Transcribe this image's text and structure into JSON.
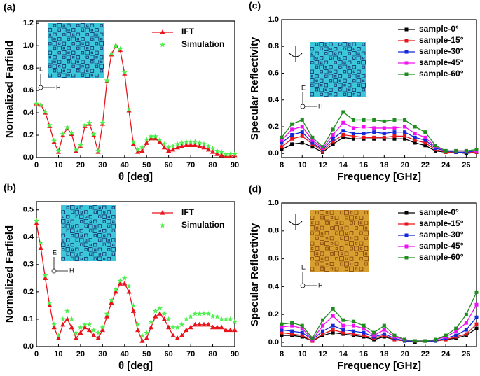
{
  "chart_data": [
    {
      "type": "line",
      "panel_label": "(a)",
      "x_label": "θ [deg]",
      "y_label": "Normalized Farfield",
      "field_labels": [
        "E",
        "H"
      ],
      "legend": "upper right",
      "x": [
        0,
        2,
        4,
        6,
        8,
        10,
        12,
        14,
        16,
        18,
        20,
        22,
        24,
        26,
        28,
        30,
        32,
        34,
        36,
        38,
        40,
        42,
        44,
        46,
        48,
        50,
        52,
        54,
        56,
        58,
        60,
        62,
        64,
        66,
        68,
        70,
        72,
        74,
        76,
        78,
        80,
        82,
        84,
        86,
        88,
        90
      ],
      "xlim": [
        0,
        90
      ],
      "xticks": [
        0,
        10,
        20,
        30,
        40,
        50,
        60,
        70,
        80,
        90
      ],
      "ylim": [
        0,
        1.22
      ],
      "yticks": [
        {
          "value": 0,
          "label": "0.0"
        },
        0.2,
        0.4,
        0.6,
        0.8,
        {
          "value": 1,
          "label": "1.0"
        },
        1.2
      ],
      "series": [
        {
          "name": "IFT",
          "color": "#e8141c",
          "marker": "triangle",
          "line": true,
          "values": [
            0.48,
            0.47,
            0.4,
            0.28,
            0.14,
            0.05,
            0.2,
            0.26,
            0.21,
            0.06,
            0.1,
            0.28,
            0.3,
            0.2,
            0.05,
            0.3,
            0.68,
            0.92,
            1.0,
            0.96,
            0.75,
            0.42,
            0.12,
            0.05,
            0.06,
            0.13,
            0.17,
            0.17,
            0.14,
            0.09,
            0.06,
            0.07,
            0.09,
            0.1,
            0.11,
            0.11,
            0.11,
            0.1,
            0.09,
            0.07,
            0.05,
            0.03,
            0.02,
            0.01,
            0.01,
            0.02
          ]
        },
        {
          "name": "Simulation",
          "color": "#4cf04c",
          "marker": "star",
          "line": false,
          "values": [
            0.48,
            0.47,
            0.41,
            0.29,
            0.15,
            0.06,
            0.21,
            0.27,
            0.22,
            0.07,
            0.11,
            0.29,
            0.31,
            0.21,
            0.06,
            0.31,
            0.69,
            0.93,
            1.0,
            0.97,
            0.76,
            0.43,
            0.14,
            0.07,
            0.09,
            0.16,
            0.19,
            0.19,
            0.16,
            0.12,
            0.09,
            0.1,
            0.12,
            0.13,
            0.14,
            0.14,
            0.14,
            0.13,
            0.12,
            0.1,
            0.08,
            0.06,
            0.05,
            0.03,
            0.03,
            0.03
          ]
        }
      ]
    },
    {
      "type": "line",
      "panel_label": "(b)",
      "x_label": "θ [deg]",
      "y_label": "Normalized Farfield",
      "field_labels": [
        "E",
        "H"
      ],
      "legend": "upper right",
      "x": [
        0,
        2,
        4,
        6,
        8,
        10,
        12,
        14,
        16,
        18,
        20,
        22,
        24,
        26,
        28,
        30,
        32,
        34,
        36,
        38,
        40,
        42,
        44,
        46,
        48,
        50,
        52,
        54,
        56,
        58,
        60,
        62,
        64,
        66,
        68,
        70,
        72,
        74,
        76,
        78,
        80,
        82,
        84,
        86,
        88,
        90
      ],
      "xlim": [
        0,
        90
      ],
      "xticks": [
        0,
        10,
        20,
        30,
        40,
        50,
        60,
        70,
        80,
        90
      ],
      "ylim": [
        0,
        0.53
      ],
      "yticks": [
        {
          "value": 0,
          "label": "0.0"
        },
        0.1,
        0.2,
        0.3,
        0.4,
        0.5
      ],
      "series": [
        {
          "name": "IFT",
          "color": "#e8141c",
          "marker": "triangle",
          "line": true,
          "values": [
            0.45,
            0.36,
            0.25,
            0.15,
            0.07,
            0.03,
            0.08,
            0.1,
            0.07,
            0.03,
            0.05,
            0.07,
            0.06,
            0.04,
            0.03,
            0.06,
            0.11,
            0.16,
            0.2,
            0.23,
            0.23,
            0.2,
            0.13,
            0.06,
            0.02,
            0.03,
            0.07,
            0.11,
            0.12,
            0.1,
            0.07,
            0.04,
            0.03,
            0.04,
            0.06,
            0.07,
            0.08,
            0.08,
            0.08,
            0.08,
            0.07,
            0.07,
            0.07,
            0.06,
            0.06,
            0.06
          ]
        },
        {
          "name": "Simulation",
          "color": "#4cf04c",
          "marker": "star",
          "line": false,
          "values": [
            0.46,
            0.38,
            0.26,
            0.16,
            0.08,
            0.04,
            0.1,
            0.13,
            0.1,
            0.05,
            0.07,
            0.08,
            0.08,
            0.06,
            0.05,
            0.07,
            0.12,
            0.17,
            0.21,
            0.24,
            0.25,
            0.22,
            0.15,
            0.08,
            0.04,
            0.05,
            0.09,
            0.13,
            0.14,
            0.12,
            0.1,
            0.07,
            0.07,
            0.08,
            0.1,
            0.11,
            0.12,
            0.12,
            0.12,
            0.12,
            0.11,
            0.11,
            0.1,
            0.1,
            0.1,
            0.09
          ]
        }
      ]
    },
    {
      "type": "line",
      "panel_label": "(c)",
      "x_label": "Frequency [GHz]",
      "y_label": "Specular Reflectivity",
      "field_labels": [
        "E",
        "H"
      ],
      "legend": "upper right",
      "x": [
        8,
        9,
        10,
        11,
        12,
        13,
        14,
        15,
        16,
        17,
        18,
        19,
        20,
        21,
        22,
        23,
        24,
        25,
        26,
        27
      ],
      "xlim": [
        8,
        27
      ],
      "xticks": [
        8,
        10,
        12,
        14,
        16,
        18,
        20,
        22,
        24,
        26
      ],
      "ylim": [
        -0.03,
        1.0
      ],
      "yticks": [
        {
          "value": 0,
          "label": "0.0"
        },
        0.2,
        0.4,
        0.6,
        0.8,
        {
          "value": 1,
          "label": "1.0"
        }
      ],
      "series": [
        {
          "name": "sample-0°",
          "color": "#000000",
          "marker": "square",
          "line": true,
          "values": [
            0.03,
            0.07,
            0.08,
            0.05,
            0.01,
            0.07,
            0.12,
            0.11,
            0.11,
            0.11,
            0.11,
            0.11,
            0.11,
            0.08,
            0.06,
            0.02,
            0.01,
            0.01,
            0.0,
            0.01
          ]
        },
        {
          "name": "sample-15°",
          "color": "#e8141c",
          "marker": "square",
          "line": true,
          "values": [
            0.05,
            0.11,
            0.13,
            0.07,
            0.02,
            0.09,
            0.14,
            0.13,
            0.12,
            0.12,
            0.12,
            0.13,
            0.13,
            0.1,
            0.08,
            0.03,
            0.01,
            0.01,
            0.01,
            0.01
          ]
        },
        {
          "name": "sample-30°",
          "color": "#1428d8",
          "marker": "square",
          "line": true,
          "values": [
            0.08,
            0.14,
            0.16,
            0.08,
            0.03,
            0.11,
            0.17,
            0.15,
            0.15,
            0.16,
            0.15,
            0.16,
            0.16,
            0.12,
            0.1,
            0.04,
            0.02,
            0.01,
            0.01,
            0.02
          ]
        },
        {
          "name": "sample-45°",
          "color": "#f010f0",
          "marker": "square",
          "line": true,
          "values": [
            0.1,
            0.18,
            0.2,
            0.1,
            0.04,
            0.14,
            0.23,
            0.19,
            0.2,
            0.19,
            0.19,
            0.19,
            0.2,
            0.15,
            0.12,
            0.05,
            0.02,
            0.02,
            0.02,
            0.02
          ]
        },
        {
          "name": "sample-60°",
          "color": "#1e8c1e",
          "marker": "square",
          "line": true,
          "values": [
            0.12,
            0.22,
            0.25,
            0.12,
            0.05,
            0.18,
            0.31,
            0.25,
            0.25,
            0.25,
            0.24,
            0.25,
            0.25,
            0.2,
            0.16,
            0.06,
            0.02,
            0.02,
            0.02,
            0.03
          ]
        }
      ]
    },
    {
      "type": "line",
      "panel_label": "(d)",
      "x_label": "Frequency [GHz]",
      "y_label": "Specular Reflectivity",
      "field_labels": [
        "E",
        "H"
      ],
      "legend": "upper right",
      "x": [
        8,
        9,
        10,
        11,
        12,
        13,
        14,
        15,
        16,
        17,
        18,
        19,
        20,
        21,
        22,
        23,
        24,
        25,
        26,
        27
      ],
      "xlim": [
        8,
        27
      ],
      "xticks": [
        8,
        10,
        12,
        14,
        16,
        18,
        20,
        22,
        24,
        26
      ],
      "ylim": [
        -0.03,
        1.0
      ],
      "yticks": [
        {
          "value": 0,
          "label": "0.0"
        },
        0.2,
        0.4,
        0.6,
        0.8,
        {
          "value": 1,
          "label": "1.0"
        }
      ],
      "series": [
        {
          "name": "sample-0°",
          "color": "#000000",
          "marker": "square",
          "line": true,
          "values": [
            0.05,
            0.05,
            0.04,
            0.01,
            0.05,
            0.07,
            0.06,
            0.05,
            0.04,
            0.02,
            0.04,
            0.02,
            0.01,
            0.0,
            0.01,
            0.01,
            0.02,
            0.03,
            0.05,
            0.1
          ]
        },
        {
          "name": "sample-15°",
          "color": "#e8141c",
          "marker": "square",
          "line": true,
          "values": [
            0.07,
            0.06,
            0.05,
            0.01,
            0.06,
            0.09,
            0.07,
            0.06,
            0.05,
            0.03,
            0.05,
            0.02,
            0.01,
            0.01,
            0.01,
            0.01,
            0.02,
            0.04,
            0.06,
            0.13
          ]
        },
        {
          "name": "sample-30°",
          "color": "#1428d8",
          "marker": "square",
          "line": true,
          "values": [
            0.09,
            0.08,
            0.07,
            0.02,
            0.08,
            0.12,
            0.09,
            0.08,
            0.07,
            0.04,
            0.06,
            0.03,
            0.01,
            0.01,
            0.01,
            0.01,
            0.03,
            0.05,
            0.09,
            0.18
          ]
        },
        {
          "name": "sample-45°",
          "color": "#f010f0",
          "marker": "square",
          "line": true,
          "values": [
            0.11,
            0.12,
            0.1,
            0.02,
            0.12,
            0.19,
            0.12,
            0.12,
            0.1,
            0.05,
            0.09,
            0.04,
            0.02,
            0.01,
            0.01,
            0.02,
            0.04,
            0.08,
            0.14,
            0.27
          ]
        },
        {
          "name": "sample-60°",
          "color": "#1e8c1e",
          "marker": "square",
          "line": true,
          "values": [
            0.13,
            0.14,
            0.12,
            0.03,
            0.16,
            0.24,
            0.16,
            0.15,
            0.12,
            0.07,
            0.12,
            0.05,
            0.02,
            0.01,
            0.01,
            0.02,
            0.05,
            0.1,
            0.2,
            0.36
          ]
        }
      ]
    }
  ]
}
